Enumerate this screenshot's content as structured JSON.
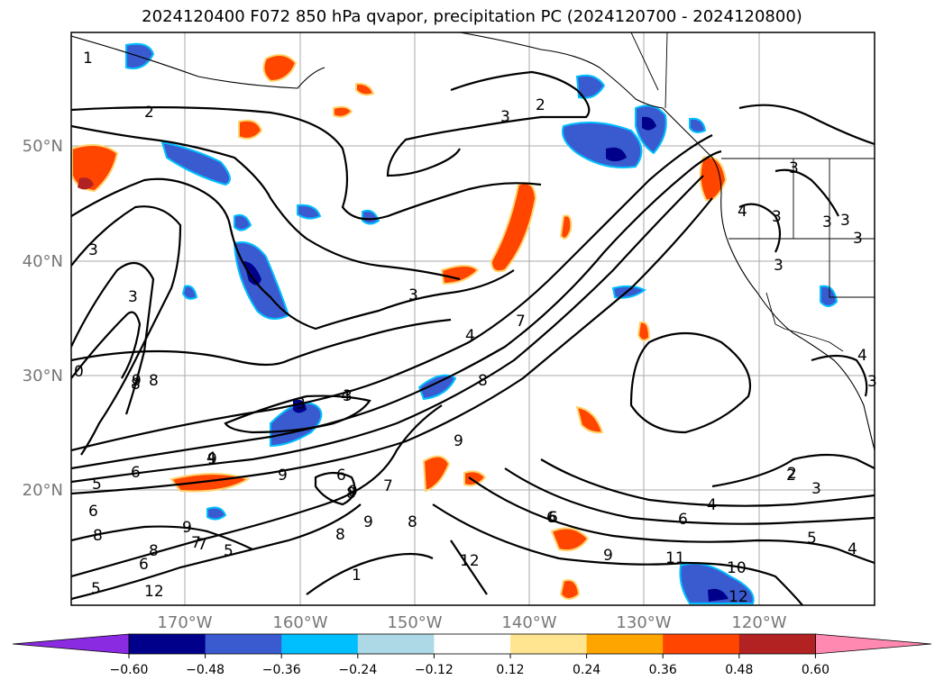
{
  "title": "2024120400 F072 850 hPa qvapor, precipitation PC (2024120700 - 2024120800)",
  "map": {
    "lat_labels": [
      "50°N",
      "40°N",
      "30°N",
      "20°N"
    ],
    "lon_labels": [
      "170°W",
      "160°W",
      "150°W",
      "140°W",
      "130°W",
      "120°W"
    ],
    "contour_labels": [
      "1",
      "2",
      "3",
      "2",
      "3",
      "3",
      "3",
      "3",
      "4",
      "3",
      "3",
      "3",
      "4",
      "3",
      "3",
      "7",
      "8",
      "9",
      "4",
      "3",
      "8",
      "0",
      "9",
      "8",
      "3",
      "2",
      "9",
      "8",
      "4",
      "6",
      "5",
      "9",
      "6",
      "7",
      "6",
      "9",
      "8",
      "9",
      "6",
      "9",
      "8",
      "7",
      "5",
      "6",
      "8",
      "12",
      "5",
      "12",
      "1",
      "7",
      "6",
      "8",
      "9",
      "6",
      "4",
      "2",
      "3",
      "5",
      "4",
      "11",
      "10",
      "12",
      "4",
      "3"
    ]
  },
  "colorbar": {
    "tick_labels": [
      "−0.60",
      "−0.48",
      "−0.36",
      "−0.24",
      "−0.12",
      "0.12",
      "0.24",
      "0.36",
      "0.48",
      "0.60"
    ],
    "colors": [
      "#8a2be2",
      "#00008b",
      "#3a5bd0",
      "#00bfff",
      "#add8e6",
      "#ffffff",
      "#ffe58f",
      "#ffa500",
      "#ff4500",
      "#b22222",
      "#ff89b0"
    ]
  },
  "colors": {
    "grid": "#aaaaaa",
    "contour": "#000000",
    "dark_blue": "#00008b",
    "mid_blue": "#3a5bd0",
    "light_blue": "#00bfff",
    "orange": "#ffa500",
    "red_orange": "#ff4500",
    "yellow": "#ffe58f"
  }
}
